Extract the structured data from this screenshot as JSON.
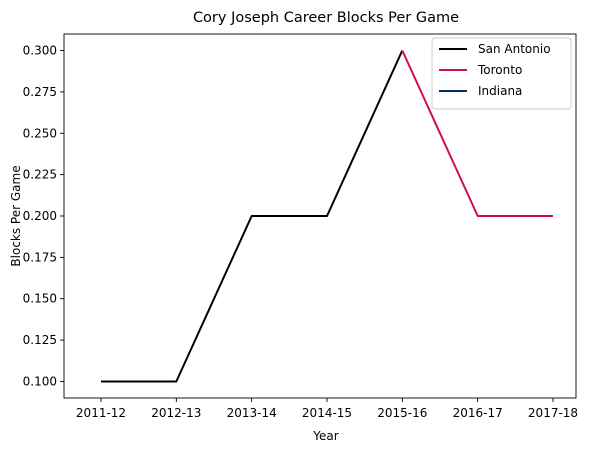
{
  "chart_data": {
    "type": "line",
    "title": "Cory Joseph Career Blocks Per Game",
    "xlabel": "Year",
    "ylabel": "Blocks Per Game",
    "categories": [
      "2011-12",
      "2012-13",
      "2013-14",
      "2014-15",
      "2015-16",
      "2016-17",
      "2017-18"
    ],
    "ylim": [
      0.09,
      0.31
    ],
    "yticks": [
      "0.100",
      "0.125",
      "0.150",
      "0.175",
      "0.200",
      "0.225",
      "0.250",
      "0.275",
      "0.300"
    ],
    "ytick_values": [
      0.1,
      0.125,
      0.15,
      0.175,
      0.2,
      0.225,
      0.25,
      0.275,
      0.3
    ],
    "grid": false,
    "legend_position": "top-right",
    "series": [
      {
        "name": "San Antonio",
        "color": "#000000",
        "values": [
          0.1,
          0.1,
          0.2,
          0.2,
          0.3,
          null,
          null
        ]
      },
      {
        "name": "Toronto",
        "color": "#ce1141",
        "values": [
          null,
          null,
          null,
          null,
          0.3,
          0.2,
          0.2
        ]
      },
      {
        "name": "Indiana",
        "color": "#002d62",
        "values": [
          null,
          null,
          null,
          null,
          null,
          null,
          null
        ]
      }
    ]
  }
}
